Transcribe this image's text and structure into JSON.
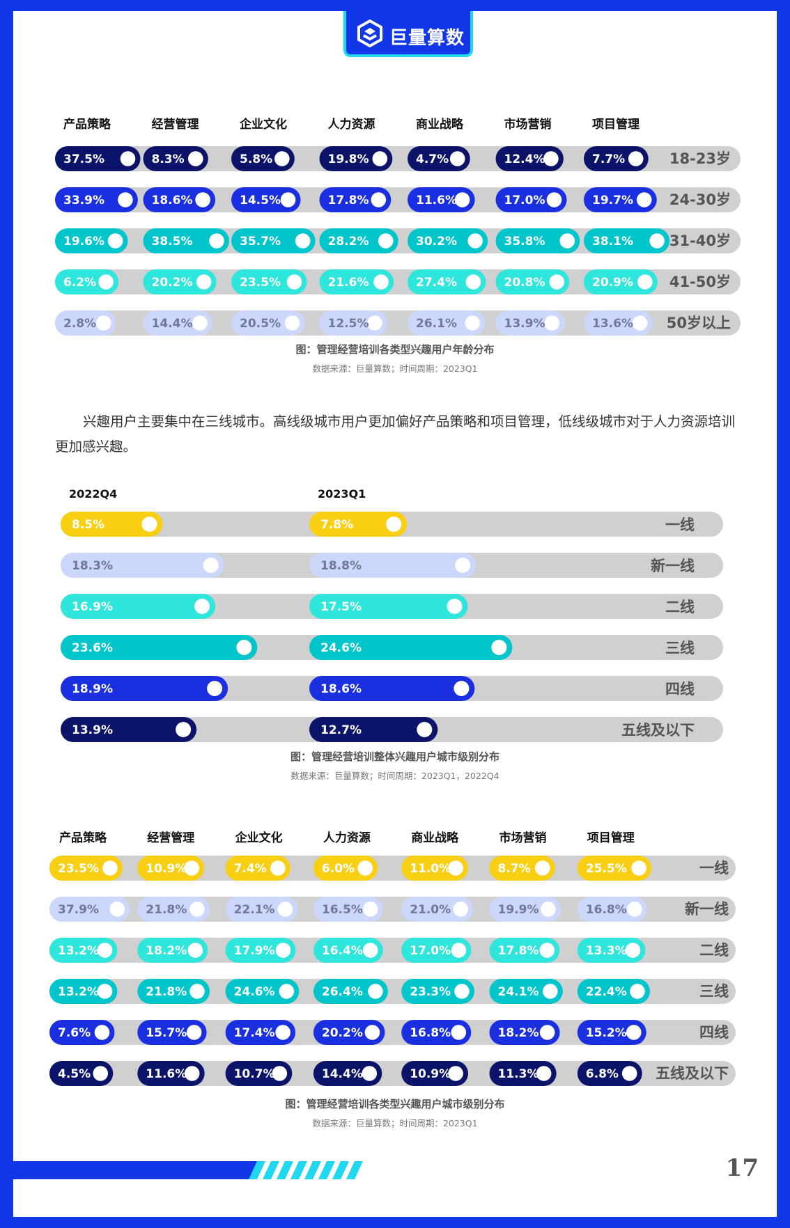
{
  "brand": {
    "name": "巨量算数"
  },
  "page_number": "17",
  "colors": {
    "navy": "#0b1469",
    "blue": "#1a2fe0",
    "teal": "#00c6cc",
    "cyan": "#2ee6dc",
    "light": "#ccd8fb",
    "yellow": "#f9cf14",
    "track": "#d0d0d0"
  },
  "paragraph": "兴趣用户主要集中在三线城市。高线级城市用户更加偏好产品策略和项目管理，低线级城市对于人力资源培训更加感兴趣。",
  "chart_data": [
    {
      "type": "bar",
      "title": "图：管理经营培训各类型兴趣用户年龄分布",
      "source": "数据来源：巨量算数；时间周期：2023Q1",
      "categories": [
        "产品策略",
        "经营管理",
        "企业文化",
        "人力资源",
        "商业战略",
        "市场营销",
        "项目管理"
      ],
      "series": [
        {
          "name": "18-23岁",
          "color": "#0b1469",
          "values": [
            37.5,
            8.3,
            5.8,
            19.8,
            4.7,
            12.4,
            7.7
          ]
        },
        {
          "name": "24-30岁",
          "color": "#1a2fe0",
          "values": [
            33.9,
            18.6,
            14.5,
            17.8,
            11.6,
            17.0,
            19.7
          ]
        },
        {
          "name": "31-40岁",
          "color": "#00c6cc",
          "values": [
            19.6,
            38.5,
            35.7,
            28.2,
            30.2,
            35.8,
            38.1
          ]
        },
        {
          "name": "41-50岁",
          "color": "#2ee6dc",
          "values": [
            6.2,
            20.2,
            23.5,
            21.6,
            27.4,
            20.8,
            20.9
          ]
        },
        {
          "name": "50岁以上",
          "color": "#ccd8fb",
          "values": [
            2.8,
            14.4,
            20.5,
            12.5,
            26.1,
            13.9,
            13.6
          ]
        }
      ]
    },
    {
      "type": "bar",
      "title": "图：管理经营培训整体兴趣用户城市级别分布",
      "source": "数据来源：巨量算数；时间周期：2023Q1，2022Q4",
      "categories": [
        "2022Q4",
        "2023Q1"
      ],
      "series": [
        {
          "name": "一线",
          "color": "#f9cf14",
          "values": [
            8.5,
            7.8
          ]
        },
        {
          "name": "新一线",
          "color": "#ccd8fb",
          "values": [
            18.3,
            18.8
          ]
        },
        {
          "name": "二线",
          "color": "#2ee6dc",
          "values": [
            16.9,
            17.5
          ]
        },
        {
          "name": "三线",
          "color": "#00c6cc",
          "values": [
            23.6,
            24.6
          ]
        },
        {
          "name": "四线",
          "color": "#1a2fe0",
          "values": [
            18.9,
            18.6
          ]
        },
        {
          "name": "五线及以下",
          "color": "#0b1469",
          "values": [
            13.9,
            12.7
          ]
        }
      ]
    },
    {
      "type": "bar",
      "title": "图：管理经营培训各类型兴趣用户城市级别分布",
      "source": "数据来源：巨量算数；时间周期：2023Q1",
      "categories": [
        "产品策略",
        "经营管理",
        "企业文化",
        "人力资源",
        "商业战略",
        "市场营销",
        "项目管理"
      ],
      "series": [
        {
          "name": "一线",
          "color": "#f9cf14",
          "values": [
            23.5,
            10.9,
            7.4,
            6.0,
            11.0,
            8.7,
            25.5
          ]
        },
        {
          "name": "新一线",
          "color": "#ccd8fb",
          "values": [
            37.9,
            21.8,
            22.1,
            16.5,
            21.0,
            19.9,
            16.8
          ]
        },
        {
          "name": "二线",
          "color": "#2ee6dc",
          "values": [
            13.2,
            18.2,
            17.9,
            16.4,
            17.0,
            17.8,
            13.3
          ]
        },
        {
          "name": "三线",
          "color": "#00c6cc",
          "values": [
            13.2,
            21.8,
            24.6,
            26.4,
            23.3,
            24.1,
            22.4
          ]
        },
        {
          "name": "四线",
          "color": "#1a2fe0",
          "values": [
            7.6,
            15.7,
            17.4,
            20.2,
            16.8,
            18.2,
            15.2
          ]
        },
        {
          "name": "五线及以下",
          "color": "#0b1469",
          "values": [
            4.5,
            11.6,
            10.7,
            14.4,
            10.9,
            11.3,
            6.8
          ]
        }
      ]
    }
  ]
}
